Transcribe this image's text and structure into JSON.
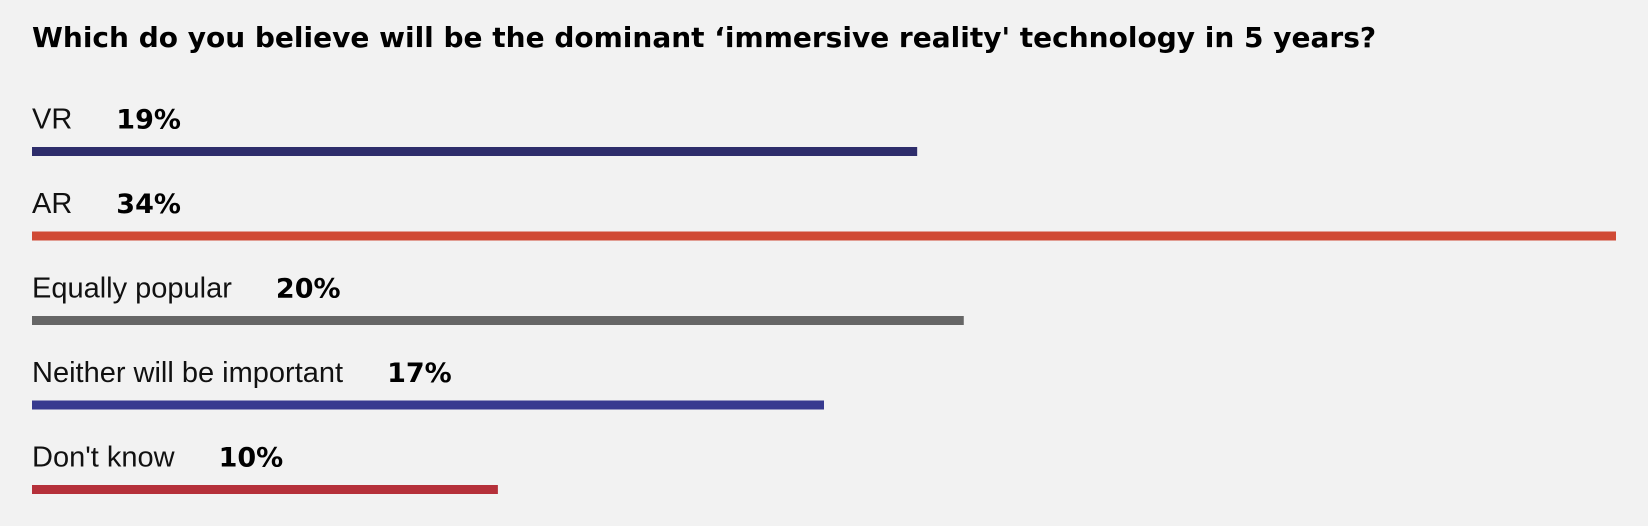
{
  "chart_data": {
    "type": "bar",
    "orientation": "horizontal",
    "title": "Which do you believe will be the dominant ‘immersive reality' technology in 5 years?",
    "categories": [
      "VR",
      "AR",
      "Equally popular",
      "Neither will be important",
      "Don't know"
    ],
    "values": [
      19,
      34,
      20,
      17,
      10
    ],
    "value_labels": [
      "19%",
      "34%",
      "20%",
      "17%",
      "10%"
    ],
    "colors": [
      "#2e2d6b",
      "#d04a35",
      "#666666",
      "#373a8f",
      "#b5303a"
    ],
    "xlim": [
      0,
      34
    ]
  }
}
